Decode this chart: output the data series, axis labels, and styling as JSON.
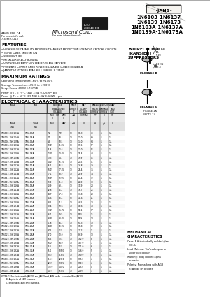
{
  "bg_color": "#f5f3ef",
  "title_part1": "1N6103-1N6137",
  "title_part2": "1N6139-1N6173",
  "title_part3": "1N6103A-1N6137A",
  "title_part4": "1N6139A-1N6173A",
  "company": "Microsemi Corp.",
  "addr1": "AAVID, FPK, CA",
  "addr2": "For more info call:",
  "addr3": "714-939-9210",
  "features": [
    "HIGH SURGE CAPABILITY PROVIDES TRANSIENT PROTECTION FOR MOST CRITICAL CIRCUITS",
    "TRIPLE LAYER PASSIVATION",
    "SUBMINIATURE",
    "METALLURGICALLY BONDED",
    "VOLTAGE HERMETICALLY SEALED GLASS PACKAGE",
    "FORWARD CURRENT AND REVERSE LEAKAGE LOWEST IBILIEN A",
    "JAN/S/TX/1ST TYPES AVAILABLE FOR MIL-S-19500"
  ],
  "max_ratings": [
    "Operating Temperature: -65°C to +175°C",
    "Storage Temperature: -65°C to +200°C",
    "Surge Power: 600W & 1500W",
    "Power @ TL = 75°C (3W) 3.0W 0.026W™ pco",
    "Power @ TL = 50°C (3.5 MIL) 5.0W 0.028W™ pco"
  ],
  "table_data": [
    [
      "1N6103-1N6103A",
      "1N6103A",
      "7.2",
      "7.99",
      "10",
      "11.3",
      "79",
      "1",
      "1.1"
    ],
    [
      "1N6104-1N6104A",
      "1N6104A",
      "7.1",
      "10.4",
      "10",
      "13.0",
      "69",
      "1",
      "1.1"
    ],
    [
      "1N6105-1N6105A",
      "1N6105A",
      "9.5",
      "10.5",
      "10",
      "14.0",
      "64",
      "1",
      "1.1"
    ],
    [
      "1N6106-1N6106A",
      "1N6106A",
      "10.45",
      "11.55",
      "10",
      "15.6",
      "57",
      "1",
      "1.1"
    ],
    [
      "1N6107-1N6107A",
      "1N6107A",
      "11.4",
      "12.6",
      "10",
      "17.0",
      "52",
      "1",
      "1.1"
    ],
    [
      "1N6108-1N6108A",
      "1N6108A",
      "12.35",
      "13.65",
      "10",
      "18.4",
      "48",
      "1",
      "1.1"
    ],
    [
      "1N6109-1N6109A",
      "1N6109A",
      "13.3",
      "14.7",
      "10",
      "19.9",
      "45",
      "1",
      "1.1"
    ],
    [
      "1N6110-1N6110A",
      "1N6110A",
      "14.25",
      "15.75",
      "10",
      "21.5",
      "41",
      "1",
      "1.1"
    ],
    [
      "1N6111-1N6111A",
      "1N6111A",
      "15.2",
      "16.8",
      "10",
      "22.8",
      "39",
      "1",
      "1.1"
    ],
    [
      "1N6112-1N6112A",
      "1N6112A",
      "16.15",
      "17.85",
      "10",
      "24.4",
      "36",
      "1",
      "1.1"
    ],
    [
      "1N6113-1N6113A",
      "1N6113A",
      "17.1",
      "18.9",
      "10",
      "25.9",
      "34",
      "1",
      "1.1"
    ],
    [
      "1N6114-1N6114A",
      "1N6114A",
      "18.05",
      "19.95",
      "10",
      "27.4",
      "32",
      "1",
      "1.1"
    ],
    [
      "1N6115-1N6115A",
      "1N6115A",
      "19.0",
      "21.0",
      "10",
      "28.9",
      "30",
      "1",
      "1.1"
    ],
    [
      "1N6116-1N6116A",
      "1N6116A",
      "20.9",
      "23.1",
      "10",
      "31.9",
      "28",
      "1",
      "1.1"
    ],
    [
      "1N6117-1N6117A",
      "1N6117A",
      "22.8",
      "25.2",
      "10",
      "34.7",
      "25",
      "1",
      "1.1"
    ],
    [
      "1N6118-1N6118A",
      "1N6118A",
      "24.7",
      "27.3",
      "10",
      "37.8",
      "23",
      "1",
      "1.1"
    ],
    [
      "1N6119-1N6119A",
      "1N6119A",
      "26.6",
      "29.4",
      "10",
      "40.6",
      "21",
      "1",
      "1.1"
    ],
    [
      "1N6120-1N6120A",
      "1N6120A",
      "28.5",
      "31.5",
      "10",
      "43.5",
      "20",
      "1",
      "1.1"
    ],
    [
      "1N6121-1N6121A",
      "1N6121A",
      "30.4",
      "33.6",
      "10",
      "46.6",
      "18",
      "1",
      "1.1"
    ],
    [
      "1N6122-1N6122A",
      "1N6122A",
      "33.25",
      "36.75",
      "10",
      "51.1",
      "17",
      "1",
      "1.1"
    ],
    [
      "1N6123-1N6123A",
      "1N6123A",
      "36.1",
      "39.9",
      "10",
      "55.5",
      "15",
      "1",
      "1.1"
    ],
    [
      "1N6124-1N6124A",
      "1N6124A",
      "38.95",
      "43.05",
      "10",
      "59.9",
      "14",
      "1",
      "1.1"
    ],
    [
      "1N6125-1N6125A",
      "1N6125A",
      "41.8",
      "46.2",
      "10",
      "64.3",
      "13",
      "1",
      "1.1"
    ],
    [
      "1N6126-1N6126A",
      "1N6126A",
      "44.65",
      "49.35",
      "10",
      "68.8",
      "12",
      "1",
      "1.1"
    ],
    [
      "1N6127-1N6127A",
      "1N6127A",
      "47.5",
      "52.5",
      "10",
      "73.2",
      "11",
      "1",
      "1.1"
    ],
    [
      "1N6128-1N6128A",
      "1N6128A",
      "57.0",
      "63.0",
      "10",
      "87.9",
      "10",
      "1",
      "1.1"
    ],
    [
      "1N6129-1N6129A",
      "1N6129A",
      "66.5",
      "73.5",
      "10",
      "102.0",
      "8",
      "1",
      "1.1"
    ],
    [
      "1N6130-1N6130A",
      "1N6130A",
      "76.0",
      "84.0",
      "10",
      "117.0",
      "7",
      "1",
      "1.1"
    ],
    [
      "1N6131-1N6131A",
      "1N6131A",
      "85.5",
      "94.5",
      "10",
      "131.0",
      "6",
      "1",
      "1.1"
    ],
    [
      "1N6132-1N6132A",
      "1N6132A",
      "95.0",
      "105.0",
      "10",
      "146.0",
      "5",
      "1",
      "1.1"
    ],
    [
      "1N6133-1N6133A",
      "1N6133A",
      "104.5",
      "115.5",
      "10",
      "160.0",
      "5",
      "1",
      "1.1"
    ],
    [
      "1N6134-1N6134A",
      "1N6134A",
      "114.0",
      "126.0",
      "10",
      "175.0",
      "4",
      "1",
      "1.1"
    ],
    [
      "1N6135-1N6135A",
      "1N6135A",
      "123.5",
      "136.5",
      "10",
      "190.0",
      "4",
      "1",
      "1.1"
    ],
    [
      "1N6136-1N6136A",
      "1N6136A",
      "133.0",
      "147.0",
      "10",
      "205.0",
      "4",
      "1",
      "1.1"
    ],
    [
      "1N6137-1N6137A",
      "1N6137A",
      "142.5",
      "157.5",
      "10",
      "219.0",
      "3",
      "1",
      "1.1"
    ]
  ],
  "mech_text": [
    "Case: P-H individually molded glass",
    "  DO-34",
    "Lead Material: Tin/lead copper or",
    "  silver clad copper",
    "Marking: Body colored alpha",
    "  numeric",
    "Polarity: No marking with A-13",
    "  B: Anode on devices"
  ],
  "notes": [
    "NOTES: 1. For devices with JANTXV and JANTX and JANS prefix, A denotes B in JANTXV.",
    "         B. Applies to all SMD numbers.",
    "         C. Single layer auto SMD Numbers."
  ]
}
